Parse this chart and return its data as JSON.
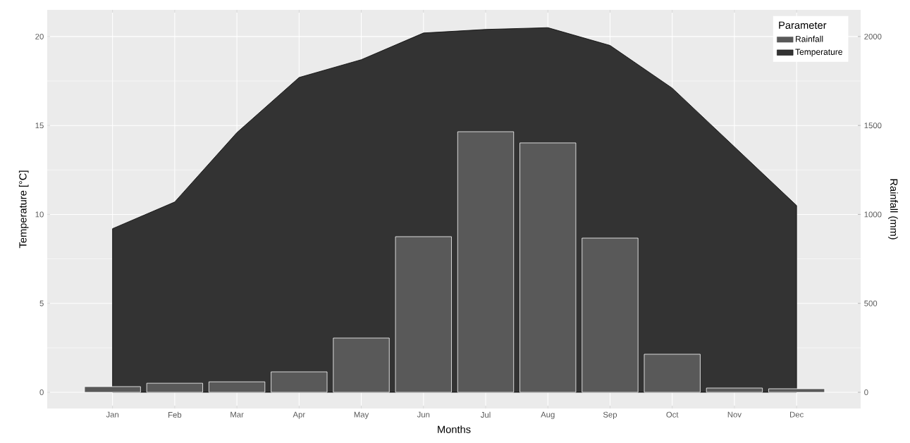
{
  "chart_data": {
    "type": "bar",
    "xlabel": "Months",
    "ylabel": "Temperature [°C]",
    "y2label": "Rainfall (mm)",
    "legend_title": "Parameter",
    "categories": [
      "Jan",
      "Feb",
      "Mar",
      "Apr",
      "May",
      "Jun",
      "Jul",
      "Aug",
      "Sep",
      "Oct",
      "Nov",
      "Dec"
    ],
    "series": [
      {
        "name": "Rainfall",
        "axis": "y2",
        "color": "#595959",
        "values": [
          32,
          51,
          59,
          115,
          305,
          875,
          1465,
          1402,
          867,
          214,
          24,
          20
        ]
      },
      {
        "name": "Temperature",
        "type": "area",
        "axis": "y",
        "color": "#333333",
        "values": [
          9.2,
          10.7,
          14.6,
          17.7,
          18.7,
          20.2,
          20.4,
          20.5,
          19.5,
          17.1,
          13.8,
          10.5
        ]
      }
    ],
    "ylim": [
      -0.91,
      21.5
    ],
    "yticks": [
      0,
      5,
      10,
      15,
      20
    ],
    "y2lim": [
      -91,
      2150
    ],
    "y2ticks": [
      0,
      500,
      1000,
      1500,
      2000
    ],
    "grid": true,
    "legend": "top right"
  }
}
